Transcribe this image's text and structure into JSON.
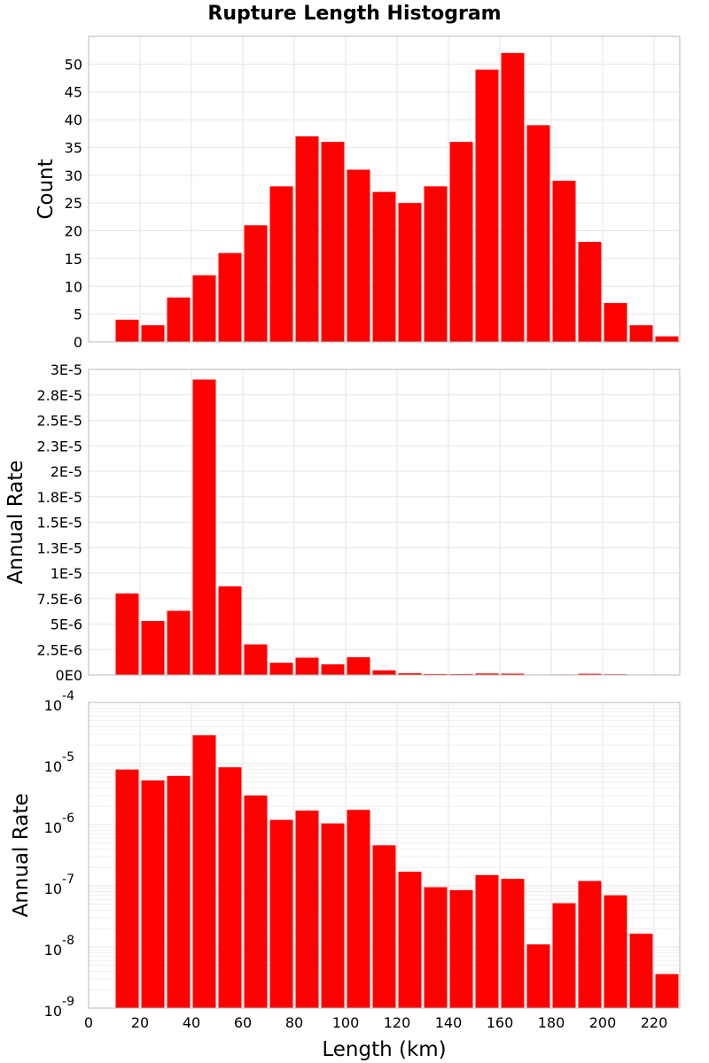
{
  "title": "Rupture Length Histogram",
  "chart_data": [
    {
      "type": "bar",
      "ylabel": "Count",
      "xlabel": "",
      "xlim": [
        0,
        230
      ],
      "ylim": [
        0,
        55
      ],
      "yticks": [
        0,
        5,
        10,
        15,
        20,
        25,
        30,
        35,
        40,
        45,
        50
      ],
      "ytick_labels": [
        "0",
        "5",
        "10",
        "15",
        "20",
        "25",
        "30",
        "35",
        "40",
        "45",
        "50"
      ],
      "bin_width": 10,
      "x": [
        15,
        25,
        35,
        45,
        55,
        65,
        75,
        85,
        95,
        105,
        115,
        125,
        135,
        145,
        155,
        165,
        175,
        185,
        195,
        205,
        215,
        225
      ],
      "values": [
        4,
        3,
        8,
        12,
        16,
        21,
        28,
        37,
        36,
        31,
        27,
        25,
        28,
        36,
        49,
        52,
        39,
        29,
        18,
        7,
        3,
        1
      ],
      "color": "#ff0000",
      "grid": true
    },
    {
      "type": "bar",
      "ylabel": "Annual Rate",
      "xlabel": "",
      "xlim": [
        0,
        230
      ],
      "ylim": [
        0,
        3e-05
      ],
      "yticks": [
        0,
        2.5e-06,
        5e-06,
        7.5e-06,
        1e-05,
        1.25e-05,
        1.5e-05,
        1.75e-05,
        2e-05,
        2.25e-05,
        2.5e-05,
        2.75e-05,
        3e-05
      ],
      "ytick_labels": [
        "0E0",
        "2.5E-6",
        "5E-6",
        "7.5E-6",
        "1E-5",
        "1.3E-5",
        "1.5E-5",
        "1.8E-5",
        "2E-5",
        "2.3E-5",
        "2.5E-5",
        "2.8E-5",
        "3E-5"
      ],
      "bin_width": 10,
      "x": [
        15,
        25,
        35,
        45,
        55,
        65,
        75,
        85,
        95,
        105,
        115,
        125,
        135,
        145,
        155,
        165,
        175,
        185,
        195,
        205,
        215,
        225
      ],
      "values": [
        8e-06,
        5.3e-06,
        6.3e-06,
        2.9e-05,
        8.7e-06,
        3e-06,
        1.2e-06,
        1.7e-06,
        1.05e-06,
        1.75e-06,
        4.6e-07,
        1.7e-07,
        9.5e-08,
        8.5e-08,
        1.5e-07,
        1.3e-07,
        1.1e-08,
        5.2e-08,
        1.2e-07,
        7e-08,
        1.65e-08,
        3.6e-09
      ],
      "color": "#ff0000",
      "grid": true
    },
    {
      "type": "bar",
      "ylabel": "Annual Rate",
      "xlabel": "Length (km)",
      "xlim": [
        0,
        230
      ],
      "ylim": [
        1e-09,
        0.0001
      ],
      "yscale": "log",
      "yticks": [
        1e-09,
        1e-08,
        1e-07,
        1e-06,
        1e-05,
        0.0001
      ],
      "ytick_exponents": [
        "-9",
        "-8",
        "-7",
        "-6",
        "-5",
        "-4"
      ],
      "ytick_base": "10",
      "xticks": [
        0,
        20,
        40,
        60,
        80,
        100,
        120,
        140,
        160,
        180,
        200,
        220
      ],
      "xtick_labels": [
        "0",
        "20",
        "40",
        "60",
        "80",
        "100",
        "120",
        "140",
        "160",
        "180",
        "200",
        "220"
      ],
      "bin_width": 10,
      "x": [
        15,
        25,
        35,
        45,
        55,
        65,
        75,
        85,
        95,
        105,
        115,
        125,
        135,
        145,
        155,
        165,
        175,
        185,
        195,
        205,
        215,
        225
      ],
      "values": [
        8e-06,
        5.3e-06,
        6.3e-06,
        2.9e-05,
        8.7e-06,
        3e-06,
        1.2e-06,
        1.7e-06,
        1.05e-06,
        1.75e-06,
        4.6e-07,
        1.7e-07,
        9.5e-08,
        8.5e-08,
        1.5e-07,
        1.3e-07,
        1.1e-08,
        5.2e-08,
        1.2e-07,
        7e-08,
        1.65e-08,
        3.6e-09
      ],
      "color": "#ff0000",
      "grid": true
    }
  ]
}
